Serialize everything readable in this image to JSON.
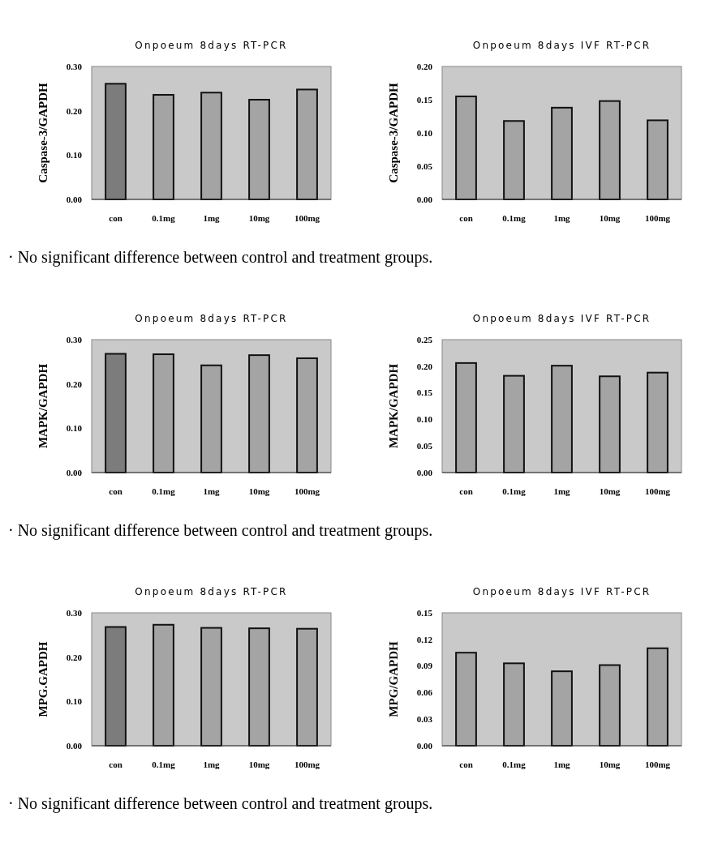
{
  "chart_data": [
    {
      "type": "bar",
      "title": "Onpoeum 8days RT-PCR",
      "ylabel": "Caspase-3/GAPDH",
      "categories": [
        "con",
        "0.1mg",
        "1mg",
        "10mg",
        "100mg"
      ],
      "values": [
        0.261,
        0.236,
        0.241,
        0.225,
        0.248
      ],
      "colors": [
        "#7c7c7c",
        "#a4a4a4",
        "#a4a4a4",
        "#a4a4a4",
        "#a4a4a4"
      ],
      "ylim": [
        0,
        0.3
      ],
      "yticks": [
        {
          "value": 0,
          "label": "0.00"
        },
        {
          "value": 0.1,
          "label": "0.10"
        },
        {
          "value": 0.2,
          "label": "0.20"
        },
        {
          "value": 0.3,
          "label": "0.30"
        }
      ],
      "grid": false
    },
    {
      "type": "bar",
      "title": "Onpoeum 8days IVF RT-PCR",
      "ylabel": "Caspase-3/GAPDH",
      "categories": [
        "con",
        "0.1mg",
        "1mg",
        "10mg",
        "100mg"
      ],
      "values": [
        0.155,
        0.118,
        0.138,
        0.148,
        0.119
      ],
      "colors": [
        "#a4a4a4",
        "#a4a4a4",
        "#a4a4a4",
        "#a4a4a4",
        "#a4a4a4"
      ],
      "ylim": [
        0,
        0.2
      ],
      "yticks": [
        {
          "value": 0,
          "label": "0.00"
        },
        {
          "value": 0.05,
          "label": "0.05"
        },
        {
          "value": 0.1,
          "label": "0.10"
        },
        {
          "value": 0.15,
          "label": "0.15"
        },
        {
          "value": 0.2,
          "label": "0.20"
        }
      ],
      "grid": false,
      "annotations": [
        "· No significant difference between control and treatment groups."
      ]
    },
    {
      "type": "bar",
      "title": "Onpoeum 8days RT-PCR",
      "ylabel": "MAPK/GAPDH",
      "categories": [
        "con",
        "0.1mg",
        "1mg",
        "10mg",
        "100mg"
      ],
      "values": [
        0.268,
        0.267,
        0.242,
        0.265,
        0.258
      ],
      "colors": [
        "#7c7c7c",
        "#a4a4a4",
        "#a4a4a4",
        "#a4a4a4",
        "#a4a4a4"
      ],
      "ylim": [
        0,
        0.3
      ],
      "yticks": [
        {
          "value": 0,
          "label": "0.00"
        },
        {
          "value": 0.1,
          "label": "0.10"
        },
        {
          "value": 0.2,
          "label": "0.20"
        },
        {
          "value": 0.3,
          "label": "0.30"
        }
      ],
      "grid": false
    },
    {
      "type": "bar",
      "title": "Onpoeum 8days IVF RT-PCR",
      "ylabel": "MAPK/GAPDH",
      "categories": [
        "con",
        "0.1mg",
        "1mg",
        "10mg",
        "100mg"
      ],
      "values": [
        0.206,
        0.182,
        0.201,
        0.181,
        0.188
      ],
      "colors": [
        "#a4a4a4",
        "#a4a4a4",
        "#a4a4a4",
        "#a4a4a4",
        "#a4a4a4"
      ],
      "ylim": [
        0,
        0.25
      ],
      "yticks": [
        {
          "value": 0,
          "label": "0.00"
        },
        {
          "value": 0.05,
          "label": "0.05"
        },
        {
          "value": 0.1,
          "label": "0.10"
        },
        {
          "value": 0.15,
          "label": "0.15"
        },
        {
          "value": 0.2,
          "label": "0.20"
        },
        {
          "value": 0.25,
          "label": "0.25"
        }
      ],
      "grid": false,
      "annotations": [
        "· No significant difference between control and treatment groups."
      ]
    },
    {
      "type": "bar",
      "title": "Onpoeum 8days RT-PCR",
      "ylabel": "MPG.GAPDH",
      "categories": [
        "con",
        "0.1mg",
        "1mg",
        "10mg",
        "100mg"
      ],
      "values": [
        0.268,
        0.273,
        0.266,
        0.265,
        0.264
      ],
      "colors": [
        "#7c7c7c",
        "#a4a4a4",
        "#a4a4a4",
        "#a4a4a4",
        "#a4a4a4"
      ],
      "ylim": [
        0,
        0.3
      ],
      "yticks": [
        {
          "value": 0,
          "label": "0.00"
        },
        {
          "value": 0.1,
          "label": "0.10"
        },
        {
          "value": 0.2,
          "label": "0.20"
        },
        {
          "value": 0.3,
          "label": "0.30"
        }
      ],
      "grid": false
    },
    {
      "type": "bar",
      "title": "Onpoeum 8days IVF RT-PCR",
      "ylabel": "MPG/GAPDH",
      "categories": [
        "con",
        "0.1mg",
        "1mg",
        "10mg",
        "100mg"
      ],
      "values": [
        0.105,
        0.093,
        0.084,
        0.091,
        0.11
      ],
      "colors": [
        "#a4a4a4",
        "#a4a4a4",
        "#a4a4a4",
        "#a4a4a4",
        "#a4a4a4"
      ],
      "ylim": [
        0,
        0.15
      ],
      "yticks": [
        {
          "value": 0,
          "label": "0.00"
        },
        {
          "value": 0.03,
          "label": "0.03"
        },
        {
          "value": 0.06,
          "label": "0.06"
        },
        {
          "value": 0.09,
          "label": "0.09"
        },
        {
          "value": 0.12,
          "label": "0.12"
        },
        {
          "value": 0.15,
          "label": "0.15"
        }
      ],
      "grid": false,
      "annotations": [
        "· No significant difference between control and treatment groups."
      ]
    }
  ]
}
